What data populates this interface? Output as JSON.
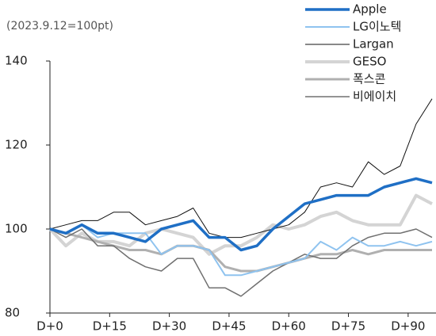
{
  "chart_data": {
    "type": "line",
    "subtitle": "(2023.9.12=100pt)",
    "x": [
      0,
      4,
      8,
      12,
      16,
      20,
      24,
      28,
      32,
      36,
      40,
      44,
      48,
      52,
      56,
      60,
      64,
      68,
      72,
      76,
      80,
      84,
      88,
      92,
      96
    ],
    "xlim": [
      0,
      97
    ],
    "xticks": [
      {
        "value": 0,
        "label": "D+0"
      },
      {
        "value": 15,
        "label": "D+15"
      },
      {
        "value": 30,
        "label": "D+30"
      },
      {
        "value": 45,
        "label": "D+45"
      },
      {
        "value": 60,
        "label": "D+60"
      },
      {
        "value": 75,
        "label": "D+75"
      },
      {
        "value": 90,
        "label": "D+90"
      }
    ],
    "ylim": [
      80,
      140
    ],
    "yticks": [
      80,
      100,
      120,
      140
    ],
    "grid": false,
    "legend": "top-right",
    "series": [
      {
        "name": "Apple",
        "color": "#1f6fc5",
        "width": 3.5,
        "values": [
          100,
          99,
          101,
          99,
          99,
          98,
          97,
          100,
          101,
          102,
          98,
          98,
          95,
          96,
          100,
          103,
          106,
          107,
          108,
          108,
          108,
          110,
          111,
          112,
          111
        ]
      },
      {
        "name": "LG이노텍",
        "color": "#8fc3ef",
        "width": 2,
        "values": [
          100,
          99,
          101,
          98,
          99,
          99,
          99,
          94,
          96,
          96,
          95,
          89,
          89,
          90,
          91,
          92,
          93,
          97,
          95,
          98,
          96,
          96,
          97,
          96,
          97
        ]
      },
      {
        "name": "Largan",
        "color": "#111111",
        "width": 1,
        "values": [
          100,
          101,
          102,
          102,
          104,
          104,
          101,
          102,
          103,
          105,
          99,
          98,
          98,
          99,
          100,
          101,
          104,
          110,
          111,
          110,
          116,
          113,
          115,
          125,
          131
        ]
      },
      {
        "name": "GESO",
        "color": "#d4d4d4",
        "width": 4,
        "values": [
          100,
          96,
          99,
          97,
          97,
          96,
          99,
          100,
          99,
          98,
          94,
          96,
          96,
          98,
          101,
          100,
          101,
          103,
          104,
          102,
          101,
          101,
          101,
          108,
          106
        ]
      },
      {
        "name": "폭스콘",
        "color": "#b0b0b0",
        "width": 3,
        "values": [
          100,
          99,
          98,
          97,
          96,
          95,
          95,
          94,
          96,
          96,
          95,
          91,
          90,
          90,
          91,
          92,
          93,
          94,
          94,
          95,
          94,
          95,
          95,
          95,
          95
        ]
      },
      {
        "name": "비에이치",
        "color": "#707070",
        "width": 1.5,
        "values": [
          100,
          98,
          100,
          96,
          96,
          93,
          91,
          90,
          93,
          93,
          86,
          86,
          84,
          87,
          90,
          92,
          94,
          93,
          93,
          96,
          98,
          99,
          99,
          100,
          98
        ]
      }
    ]
  }
}
